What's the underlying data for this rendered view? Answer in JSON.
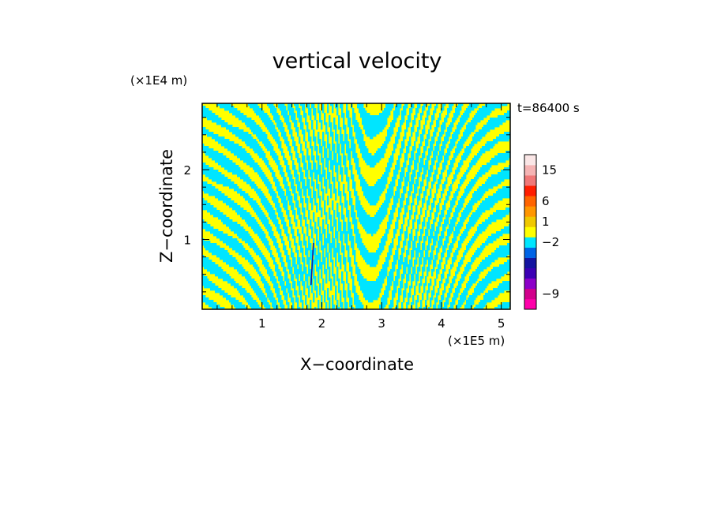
{
  "chart_data": {
    "type": "heatmap",
    "title": "vertical velocity",
    "xlabel": "X−coordinate",
    "ylabel": "Z−coordinate",
    "x_scale_label": "(×1E5 m)",
    "y_scale_label": "(×1E4 m)",
    "time_label": "t=86400 s",
    "xlim": [
      0,
      5.15
    ],
    "ylim": [
      0,
      2.95
    ],
    "x_ticks": [
      {
        "value": 1,
        "label": "1"
      },
      {
        "value": 2,
        "label": "2"
      },
      {
        "value": 3,
        "label": "3"
      },
      {
        "value": 4,
        "label": "4"
      },
      {
        "value": 5,
        "label": "5"
      }
    ],
    "y_ticks": [
      {
        "value": 1,
        "label": "1"
      },
      {
        "value": 2,
        "label": "2"
      }
    ],
    "field_colors": {
      "positive": "#ffff00",
      "negative": "#00e5ff",
      "strong_negative": "#1a1a99"
    },
    "colorbar": {
      "levels": [
        {
          "color": "#ff00aa"
        },
        {
          "color": "#d2008c"
        },
        {
          "color": "#8c00c8"
        },
        {
          "color": "#3c00b4"
        },
        {
          "color": "#1414a0"
        },
        {
          "color": "#0064e6"
        },
        {
          "color": "#00e6ff"
        },
        {
          "color": "#ffff00"
        },
        {
          "color": "#f0c800"
        },
        {
          "color": "#ff9600"
        },
        {
          "color": "#ff6400"
        },
        {
          "color": "#ff1e00"
        },
        {
          "color": "#f07878"
        },
        {
          "color": "#f5b4b4"
        },
        {
          "color": "#fae6e6"
        }
      ],
      "labels": [
        {
          "text": "15",
          "index": 13
        },
        {
          "text": "6",
          "index": 10
        },
        {
          "text": "1",
          "index": 8
        },
        {
          "text": "−2",
          "index": 6
        },
        {
          "text": "−9",
          "index": 1
        }
      ]
    }
  }
}
